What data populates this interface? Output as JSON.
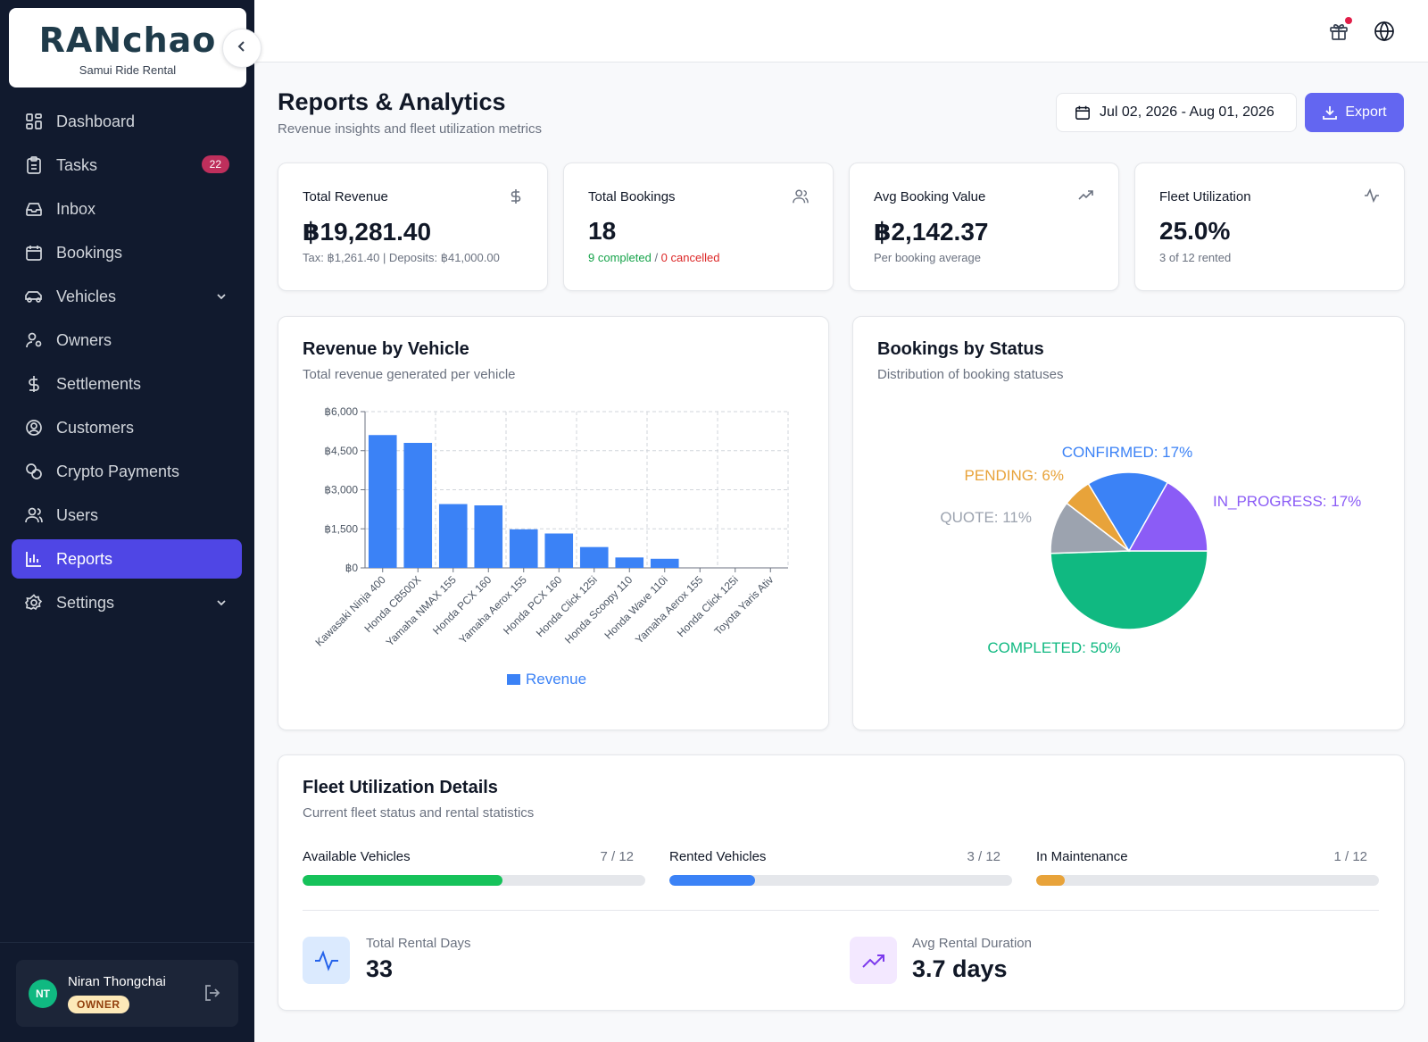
{
  "brand": {
    "name": "RANchao",
    "tagline": "Samui Ride Rental"
  },
  "sidebar": {
    "items": [
      {
        "label": "Dashboard",
        "icon": "dashboard-icon"
      },
      {
        "label": "Tasks",
        "icon": "clipboard-icon",
        "badge": "22"
      },
      {
        "label": "Inbox",
        "icon": "inbox-icon"
      },
      {
        "label": "Bookings",
        "icon": "calendar-icon"
      },
      {
        "label": "Vehicles",
        "icon": "car-icon"
      },
      {
        "label": "Owners",
        "icon": "user-gear-icon"
      },
      {
        "label": "Settlements",
        "icon": "dollar-icon"
      },
      {
        "label": "Customers",
        "icon": "user-circle-icon"
      },
      {
        "label": "Crypto Payments",
        "icon": "coins-icon"
      },
      {
        "label": "Users",
        "icon": "users-icon"
      },
      {
        "label": "Reports",
        "icon": "bar-chart-icon"
      },
      {
        "label": "Settings",
        "icon": "gear-icon"
      }
    ],
    "active": "Reports"
  },
  "user": {
    "initials": "NT",
    "name": "Niran Thongchai",
    "role": "OWNER"
  },
  "header": {
    "title": "Reports & Analytics",
    "subtitle": "Revenue insights and fleet utilization metrics",
    "date_range": "Jul 02, 2026 - Aug 01, 2026",
    "export_label": "Export"
  },
  "stats": [
    {
      "label": "Total Revenue",
      "value": "฿19,281.40",
      "note": "Tax: ฿1,261.40 | Deposits: ฿41,000.00"
    },
    {
      "label": "Total Bookings",
      "value": "18",
      "note_completed": "9 completed",
      "note_sep": " / ",
      "note_cancelled": "0 cancelled"
    },
    {
      "label": "Avg Booking Value",
      "value": "฿2,142.37",
      "note": "Per booking average"
    },
    {
      "label": "Fleet Utilization",
      "value": "25.0%",
      "note": "3 of 12 rented"
    }
  ],
  "revenue_card": {
    "title": "Revenue by Vehicle",
    "subtitle": "Total revenue generated per vehicle"
  },
  "status_card": {
    "title": "Bookings by Status",
    "subtitle": "Distribution of booking statuses"
  },
  "chart_data": [
    {
      "type": "bar",
      "categories": [
        "Kawasaki Ninja 400",
        "Honda CB500X",
        "Yamaha NMAX 155",
        "Honda PCX 160",
        "Yamaha Aerox 155",
        "Honda PCX 160",
        "Honda Click 125i",
        "Honda Scoopy 110",
        "Honda Wave 110i",
        "Yamaha Aerox 155",
        "Honda Click 125i",
        "Toyota Yaris Ativ"
      ],
      "series": [
        {
          "name": "Revenue",
          "values": [
            5100,
            4800,
            2450,
            2400,
            1480,
            1320,
            800,
            400,
            350,
            0,
            0,
            0
          ]
        }
      ],
      "ylim": [
        0,
        6000
      ],
      "yticks": [
        "฿0",
        "฿1,500",
        "฿3,000",
        "฿4,500",
        "฿6,000"
      ],
      "ytick_values": [
        0,
        1500,
        3000,
        4500,
        6000
      ],
      "grid": true,
      "legend": "bottom",
      "color": "#3b82f6"
    },
    {
      "type": "pie",
      "slices": [
        {
          "label": "COMPLETED: 50%",
          "value": 50,
          "color": "#10b981"
        },
        {
          "label": "QUOTE: 11%",
          "value": 11,
          "color": "#9ca3af"
        },
        {
          "label": "PENDING: 6%",
          "value": 6,
          "color": "#e8a33a"
        },
        {
          "label": "CONFIRMED: 17%",
          "value": 17,
          "color": "#3b82f6"
        },
        {
          "label": "IN_PROGRESS: 17%",
          "value": 17,
          "color": "#8b5cf6"
        }
      ]
    }
  ],
  "fleet": {
    "title": "Fleet Utilization Details",
    "subtitle": "Current fleet status and rental statistics",
    "bars": [
      {
        "label": "Available Vehicles",
        "count": "7 / 12",
        "fraction": 0.5833,
        "color": "#16c25a"
      },
      {
        "label": "Rented Vehicles",
        "count": "3 / 12",
        "fraction": 0.25,
        "color": "#3b82f6"
      },
      {
        "label": "In Maintenance",
        "count": "1 / 12",
        "fraction": 0.0833,
        "color": "#e8a33a"
      }
    ],
    "metrics": [
      {
        "label": "Total Rental Days",
        "value": "33",
        "icon": "activity-icon"
      },
      {
        "label": "Avg Rental Duration",
        "value": "3.7 days",
        "icon": "trending-up-icon"
      }
    ]
  }
}
